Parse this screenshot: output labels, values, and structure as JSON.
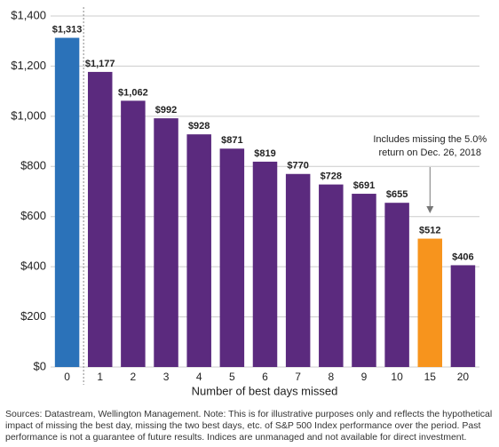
{
  "chart_data": {
    "type": "bar",
    "x_label": "Number of best days missed",
    "categories": [
      "0",
      "1",
      "2",
      "3",
      "4",
      "5",
      "6",
      "7",
      "8",
      "9",
      "10",
      "15",
      "20"
    ],
    "values": [
      1313,
      1177,
      1062,
      992,
      928,
      871,
      819,
      770,
      728,
      691,
      655,
      512,
      406
    ],
    "value_labels": [
      "$1,313",
      "$1,177",
      "$1,062",
      "$992",
      "$928",
      "$871",
      "$819",
      "$770",
      "$728",
      "$691",
      "$655",
      "$512",
      "$406"
    ],
    "colors": [
      "#2b72b9",
      "#5b2a7e",
      "#5b2a7e",
      "#5b2a7e",
      "#5b2a7e",
      "#5b2a7e",
      "#5b2a7e",
      "#5b2a7e",
      "#5b2a7e",
      "#5b2a7e",
      "#5b2a7e",
      "#f7941d",
      "#5b2a7e"
    ],
    "ylim": [
      0,
      1400
    ],
    "yticks": [
      {
        "value": 0,
        "label": "$0"
      },
      {
        "value": 200,
        "label": "$200"
      },
      {
        "value": 400,
        "label": "$400"
      },
      {
        "value": 600,
        "label": "$600"
      },
      {
        "value": 800,
        "label": "$800"
      },
      {
        "value": 1000,
        "label": "$1,000"
      },
      {
        "value": 1200,
        "label": "$1,200"
      },
      {
        "value": 1400,
        "label": "$1,400"
      }
    ],
    "grid": true,
    "annotation": {
      "lines": [
        "Includes missing the 5.0%",
        "return on Dec. 26, 2018"
      ],
      "category": 11
    },
    "note": "Sources: Datastream, Wellington Management. Note: This is for illustrative purposes only and reflects the hypothetical impact of missing the best day, missing the two best days, etc. of S&P 500 Index performance over the period. Past performance is not a guarantee of future results. Indices are unmanaged and not available for direct investment."
  }
}
